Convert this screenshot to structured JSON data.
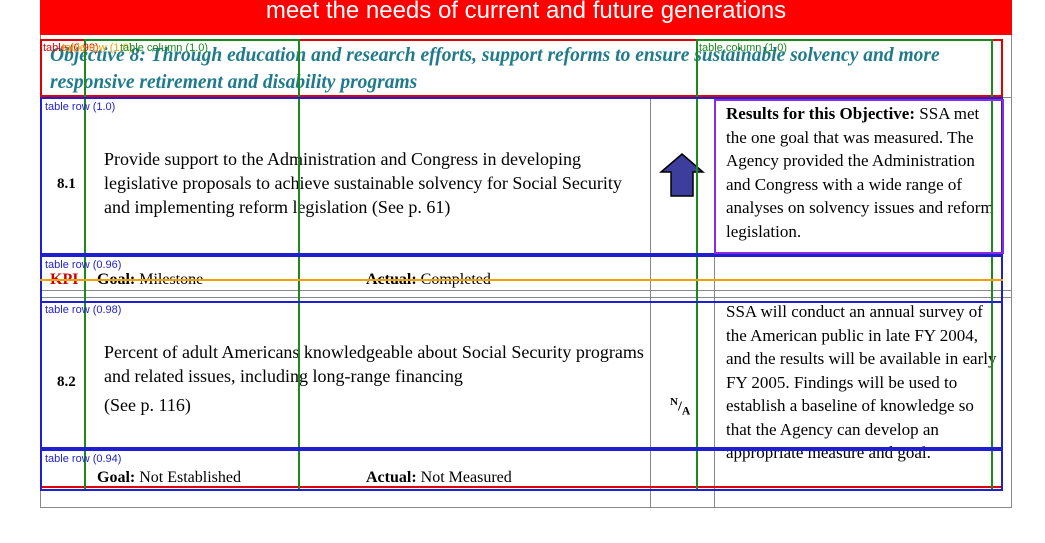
{
  "banner": {
    "text": "meet the needs of current and future generations"
  },
  "objective": {
    "text": "Objective 8: Through education and research efforts, support reforms to ensure sustainable solvency and more responsive retirement and disability programs"
  },
  "rows": [
    {
      "number": "8.1",
      "description": "Provide support to the Administration and Congress in developing legislative proposals to achieve sustainable solvency for Social Security and implementing reform legislation (See p. 61)",
      "kpi": "KPI",
      "goal_label": "Goal:",
      "goal_value": "Milestone",
      "actual_label": "Actual:",
      "actual_value": "Completed",
      "status": "up-arrow-icon"
    },
    {
      "number": "8.2",
      "description_line1": "Percent of adult Americans knowledgeable about Social Security programs and related issues, including long-range financing",
      "description_line2": "(See p. 116)",
      "goal_label": "Goal:",
      "goal_value": "Not Established",
      "actual_label": "Actual:",
      "actual_value": "Not Measured",
      "status_n": "N",
      "status_a": "A"
    }
  ],
  "results_1": {
    "label": "Results for this Objective:",
    "text": "SSA met the one goal that was measured. The Agency provided the Administration and Congress with a wide range of analyses on solvency issues and reform legislation."
  },
  "results_2": {
    "text": "SSA will conduct an annual survey of the American public in late FY 2004, and the results will be available in early FY 2005. Findings will be used to establish a baseline of knowledge so that the Agency can develop an appropriate measure and goal."
  },
  "annotations": {
    "table_top": "table (0.99)",
    "table_row_header": "table row (1.0)",
    "table_column_first": "table column (1.0)",
    "table_column_right": "table column (1.0)",
    "row_1": "table row (1.0)",
    "row_2": "table row (0.96)",
    "row_3": "table row (0.98)",
    "row_4": "table row (0.94)"
  },
  "colors": {
    "banner": "#ff0000",
    "objective": "#1f7a8c",
    "kpi": "#cc0000",
    "arrow": "#3d3d9e",
    "annot_blue": "#1f1fd0",
    "annot_green": "#1a8a1a",
    "annot_red": "#e00000",
    "annot_orange": "#f0a000",
    "annot_purple": "#8a2be2"
  }
}
